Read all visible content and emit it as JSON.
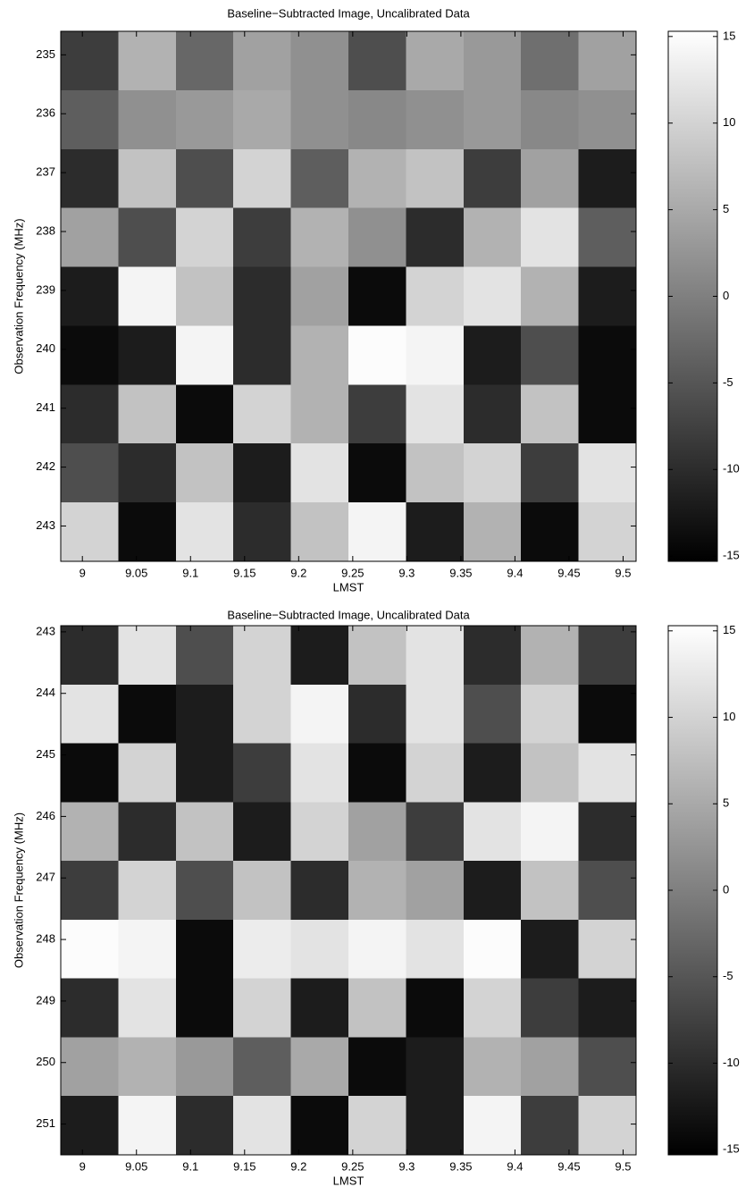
{
  "chart_data": [
    {
      "type": "heatmap",
      "title": "Baseline−Subtracted Image, Uncalibrated Data",
      "xlabel": "LMST",
      "ylabel": "Observation Frequency (MHz)",
      "xlim": [
        8.98,
        9.512
      ],
      "xticks": [
        9,
        9.05,
        9.1,
        9.15,
        9.2,
        9.25,
        9.3,
        9.35,
        9.4,
        9.45,
        9.5
      ],
      "ylim": [
        234.6,
        243.6
      ],
      "yticks": [
        235,
        236,
        237,
        238,
        239,
        240,
        241,
        242,
        243
      ],
      "z": [
        [
          -8,
          6,
          -3,
          4,
          2,
          -6,
          5,
          3,
          -2,
          4
        ],
        [
          -4,
          2,
          3,
          5,
          2,
          1,
          2,
          3,
          1,
          2
        ],
        [
          -10,
          8,
          -6,
          10,
          -4,
          6,
          8,
          -8,
          4,
          -12
        ],
        [
          4,
          -6,
          10,
          -8,
          6,
          2,
          -10,
          6,
          12,
          -4
        ],
        [
          -12,
          14,
          8,
          -10,
          4,
          -14,
          10,
          12,
          6,
          -12
        ],
        [
          -14,
          -12,
          14,
          -10,
          6,
          15,
          14,
          -12,
          -6,
          -14
        ],
        [
          -10,
          8,
          -14,
          10,
          6,
          -8,
          12,
          -10,
          8,
          -14
        ],
        [
          -6,
          -10,
          8,
          -12,
          12,
          -14,
          8,
          10,
          -8,
          12
        ],
        [
          10,
          -14,
          12,
          -10,
          8,
          14,
          -12,
          6,
          -14,
          10
        ]
      ],
      "colorbar": {
        "clim": [
          -15.3,
          15.3
        ],
        "ticks": [
          -15,
          -10,
          -5,
          0,
          5,
          10,
          15
        ]
      }
    },
    {
      "type": "heatmap",
      "title": "Baseline−Subtracted Image, Uncalibrated Data",
      "xlabel": "LMST",
      "ylabel": "Observation Frequency (MHz)",
      "xlim": [
        8.98,
        9.512
      ],
      "xticks": [
        9,
        9.05,
        9.1,
        9.15,
        9.2,
        9.25,
        9.3,
        9.35,
        9.4,
        9.45,
        9.5
      ],
      "ylim": [
        242.9,
        251.5
      ],
      "yticks": [
        243,
        244,
        245,
        246,
        247,
        248,
        249,
        250,
        251
      ],
      "z": [
        [
          -10,
          12,
          -6,
          10,
          -12,
          8,
          12,
          -10,
          6,
          -8
        ],
        [
          12,
          -14,
          -12,
          10,
          14,
          -10,
          12,
          -6,
          10,
          -14
        ],
        [
          -14,
          10,
          -12,
          -8,
          12,
          -14,
          10,
          -12,
          8,
          12
        ],
        [
          6,
          -10,
          8,
          -12,
          10,
          4,
          -8,
          12,
          14,
          -10
        ],
        [
          -8,
          10,
          -6,
          8,
          -10,
          6,
          4,
          -12,
          8,
          -6
        ],
        [
          15,
          14,
          -14,
          13,
          12,
          14,
          12,
          15,
          -12,
          10
        ],
        [
          -10,
          12,
          -14,
          10,
          -12,
          8,
          -14,
          10,
          -8,
          -12
        ],
        [
          4,
          6,
          3,
          -4,
          5,
          -14,
          -12,
          6,
          4,
          -6
        ],
        [
          -12,
          14,
          -10,
          12,
          -14,
          10,
          -12,
          14,
          -8,
          10
        ]
      ],
      "colorbar": {
        "clim": [
          -15.3,
          15.3
        ],
        "ticks": [
          -15,
          -10,
          -5,
          0,
          5,
          10,
          15
        ]
      }
    }
  ]
}
